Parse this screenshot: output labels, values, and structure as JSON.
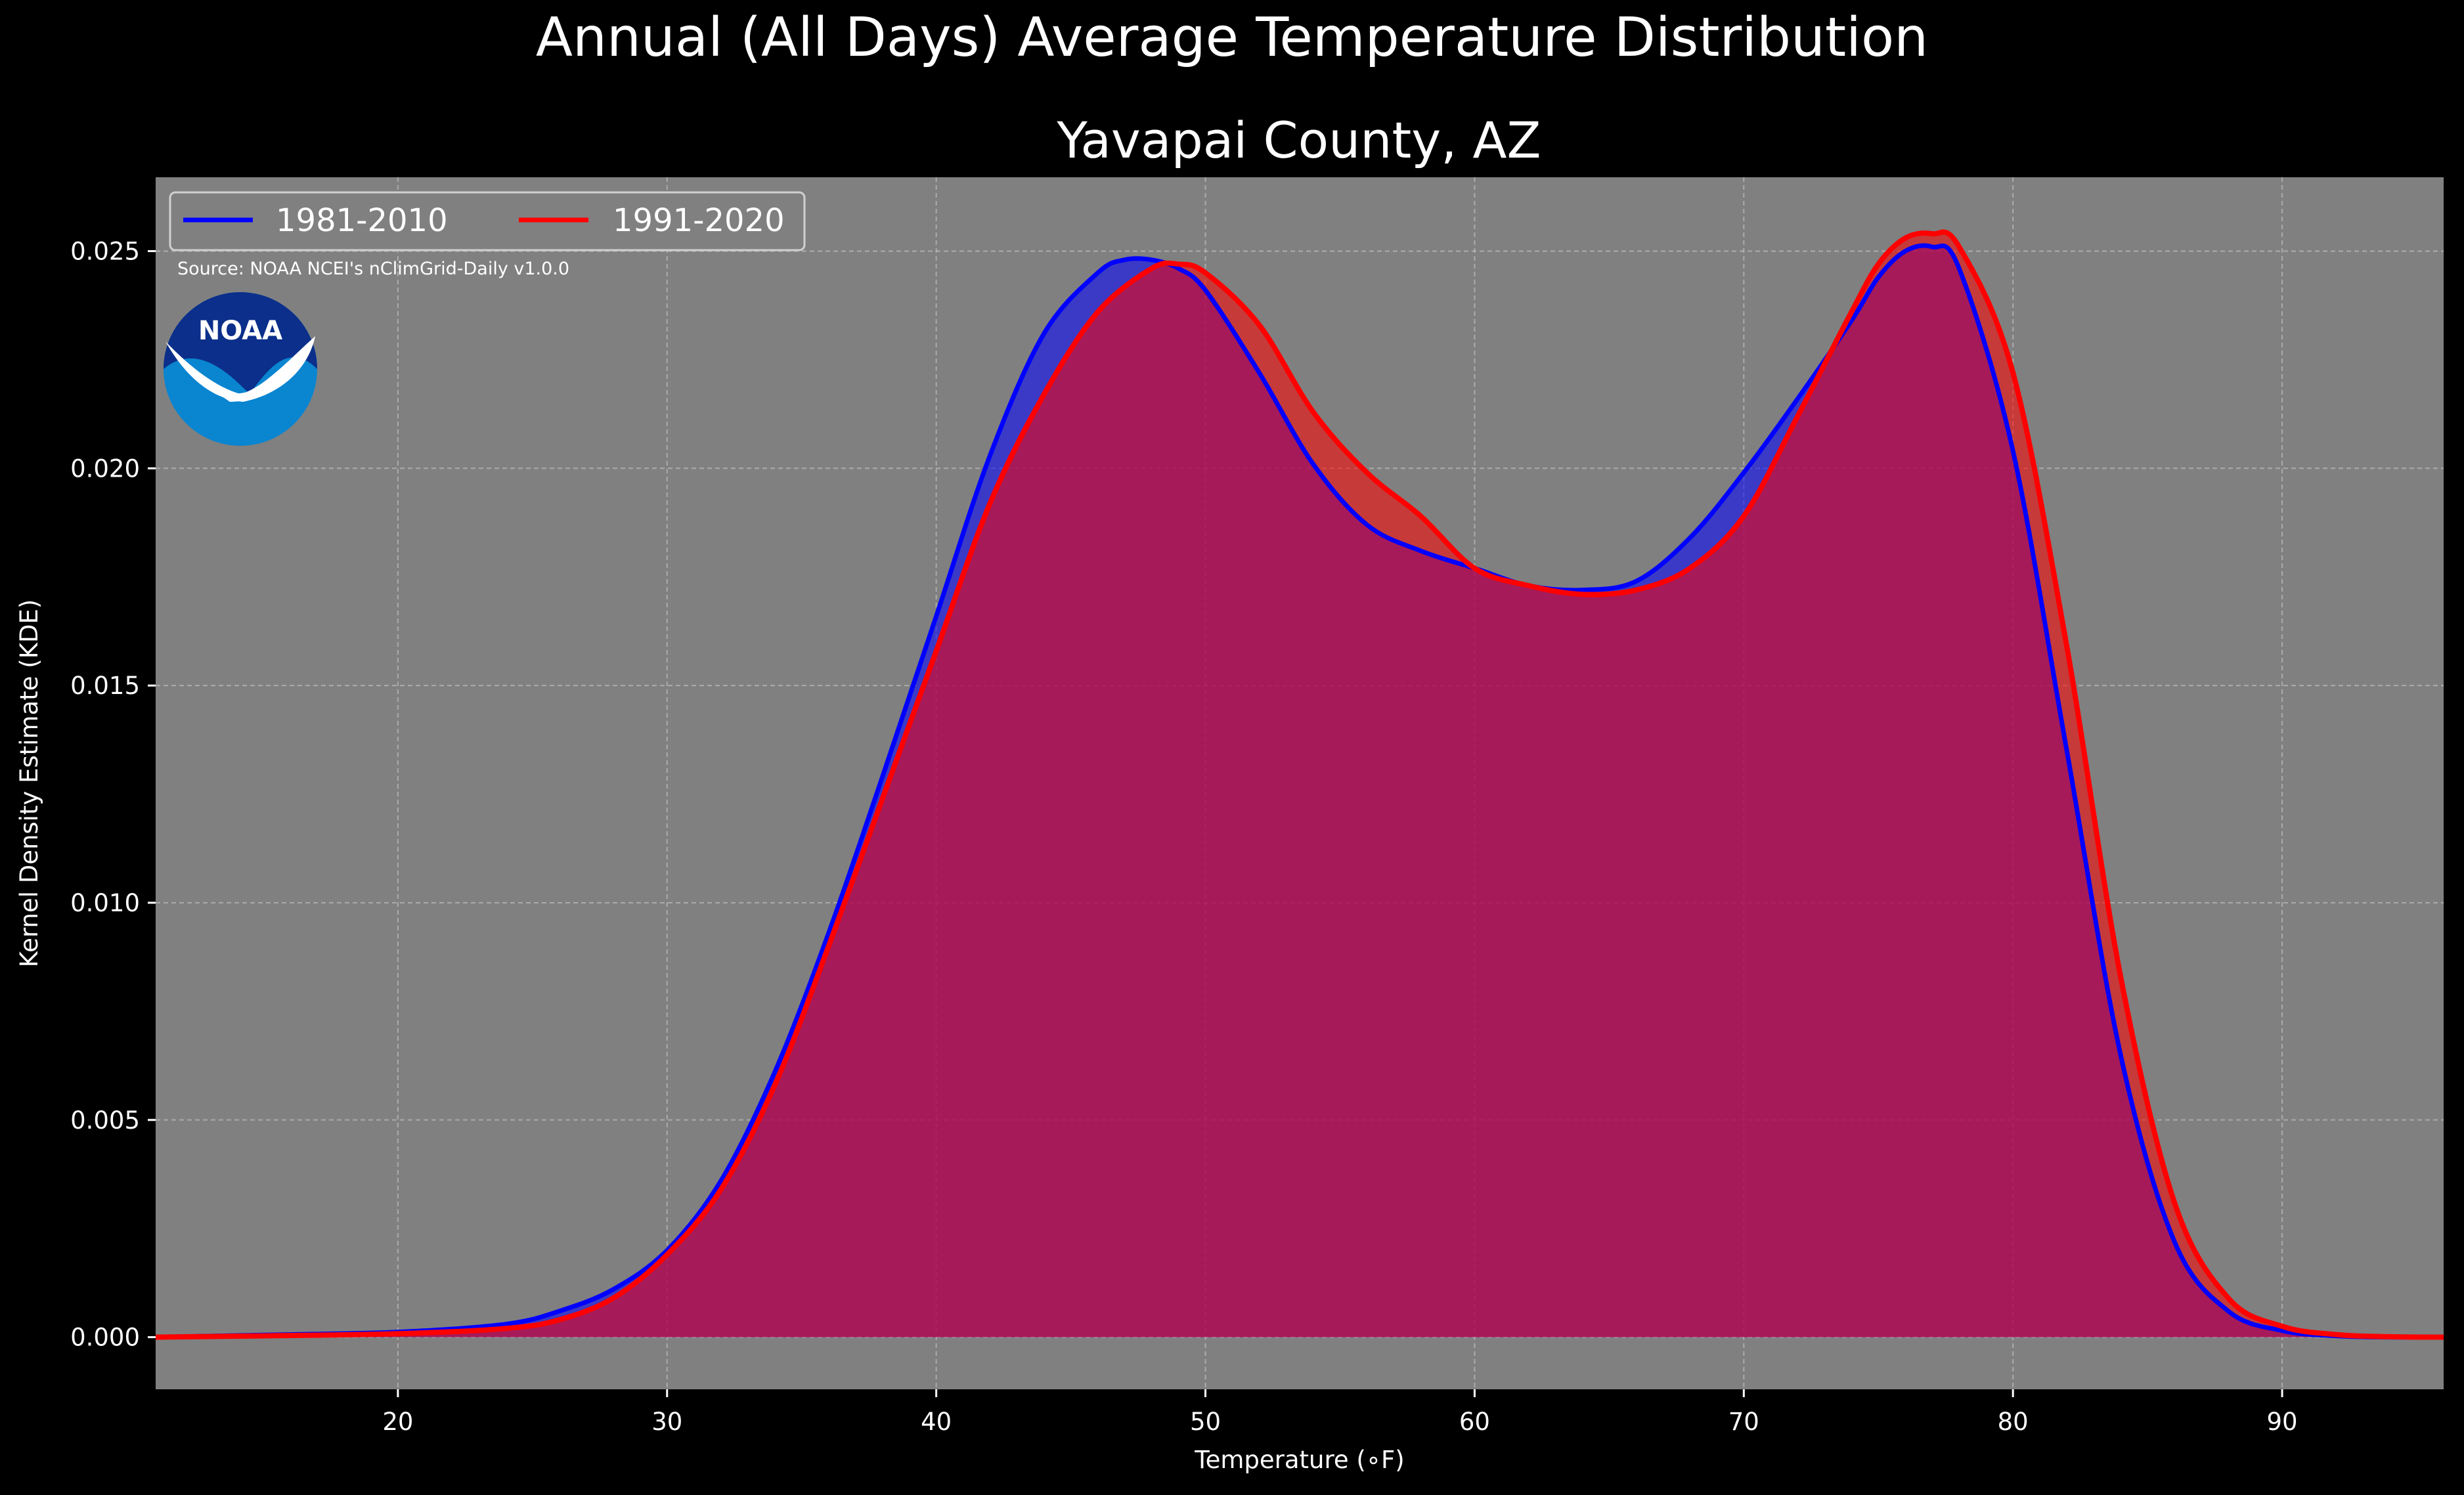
{
  "chart_data": {
    "type": "area",
    "title": "Annual (All Days) Average Temperature Distribution",
    "subtitle": "Yavapai County, AZ",
    "xlabel": "Temperature (∘F)",
    "ylabel": "Kernel Density Estimate (KDE)",
    "xlim": [
      11,
      96
    ],
    "ylim": [
      -0.0012,
      0.0267
    ],
    "xticks": [
      20,
      30,
      40,
      50,
      60,
      70,
      80,
      90
    ],
    "yticks": [
      0.0,
      0.005,
      0.01,
      0.015,
      0.02,
      0.025
    ],
    "ytick_labels": [
      "0.000",
      "0.005",
      "0.010",
      "0.015",
      "0.020",
      "0.025"
    ],
    "grid": true,
    "legend_position": "top-left",
    "source_note": "Source: NOAA NCEI's nClimGrid-Daily v1.0.0",
    "logo_text": "NOAA",
    "series": [
      {
        "name": "1981-2010",
        "color": "#0000ff",
        "x": [
          11,
          15,
          20,
          24,
          26,
          28,
          30,
          32,
          34,
          36,
          38,
          40,
          42,
          44,
          46,
          47,
          48,
          49,
          50,
          52,
          54,
          56,
          58,
          60,
          62,
          64,
          66,
          68,
          70,
          72,
          74,
          75,
          76,
          77,
          78,
          80,
          82,
          84,
          86,
          88,
          90,
          92,
          94,
          96
        ],
        "y": [
          0.0,
          5e-05,
          0.00012,
          0.0003,
          0.0006,
          0.0011,
          0.002,
          0.0036,
          0.0061,
          0.0093,
          0.0129,
          0.0166,
          0.0203,
          0.0231,
          0.0245,
          0.0248,
          0.0248,
          0.0246,
          0.0241,
          0.0222,
          0.0201,
          0.0187,
          0.0181,
          0.0177,
          0.0173,
          0.0172,
          0.0174,
          0.0184,
          0.0199,
          0.0216,
          0.0234,
          0.0244,
          0.025,
          0.0251,
          0.0246,
          0.0204,
          0.0135,
          0.0065,
          0.0022,
          0.0006,
          0.00015,
          3e-05,
          0.0,
          0.0
        ]
      },
      {
        "name": "1991-2020",
        "color": "#ff0000",
        "x": [
          11,
          15,
          20,
          24,
          26,
          28,
          30,
          32,
          34,
          36,
          38,
          40,
          42,
          44,
          46,
          48,
          49,
          50,
          52,
          54,
          56,
          58,
          60,
          62,
          64,
          66,
          68,
          70,
          72,
          74,
          75,
          76,
          77,
          78,
          80,
          82,
          84,
          86,
          88,
          90,
          92,
          94,
          96
        ],
        "y": [
          0.0,
          3e-05,
          8e-05,
          0.0002,
          0.0004,
          0.0009,
          0.0019,
          0.0034,
          0.0058,
          0.009,
          0.0124,
          0.0158,
          0.0192,
          0.0217,
          0.0236,
          0.0246,
          0.0247,
          0.0245,
          0.0233,
          0.0213,
          0.0199,
          0.0189,
          0.0177,
          0.0173,
          0.0171,
          0.0172,
          0.0177,
          0.0189,
          0.0212,
          0.0236,
          0.0247,
          0.0253,
          0.0254,
          0.0251,
          0.0222,
          0.0159,
          0.0083,
          0.0031,
          0.0009,
          0.00025,
          6e-05,
          1e-05,
          0.0
        ]
      }
    ]
  }
}
